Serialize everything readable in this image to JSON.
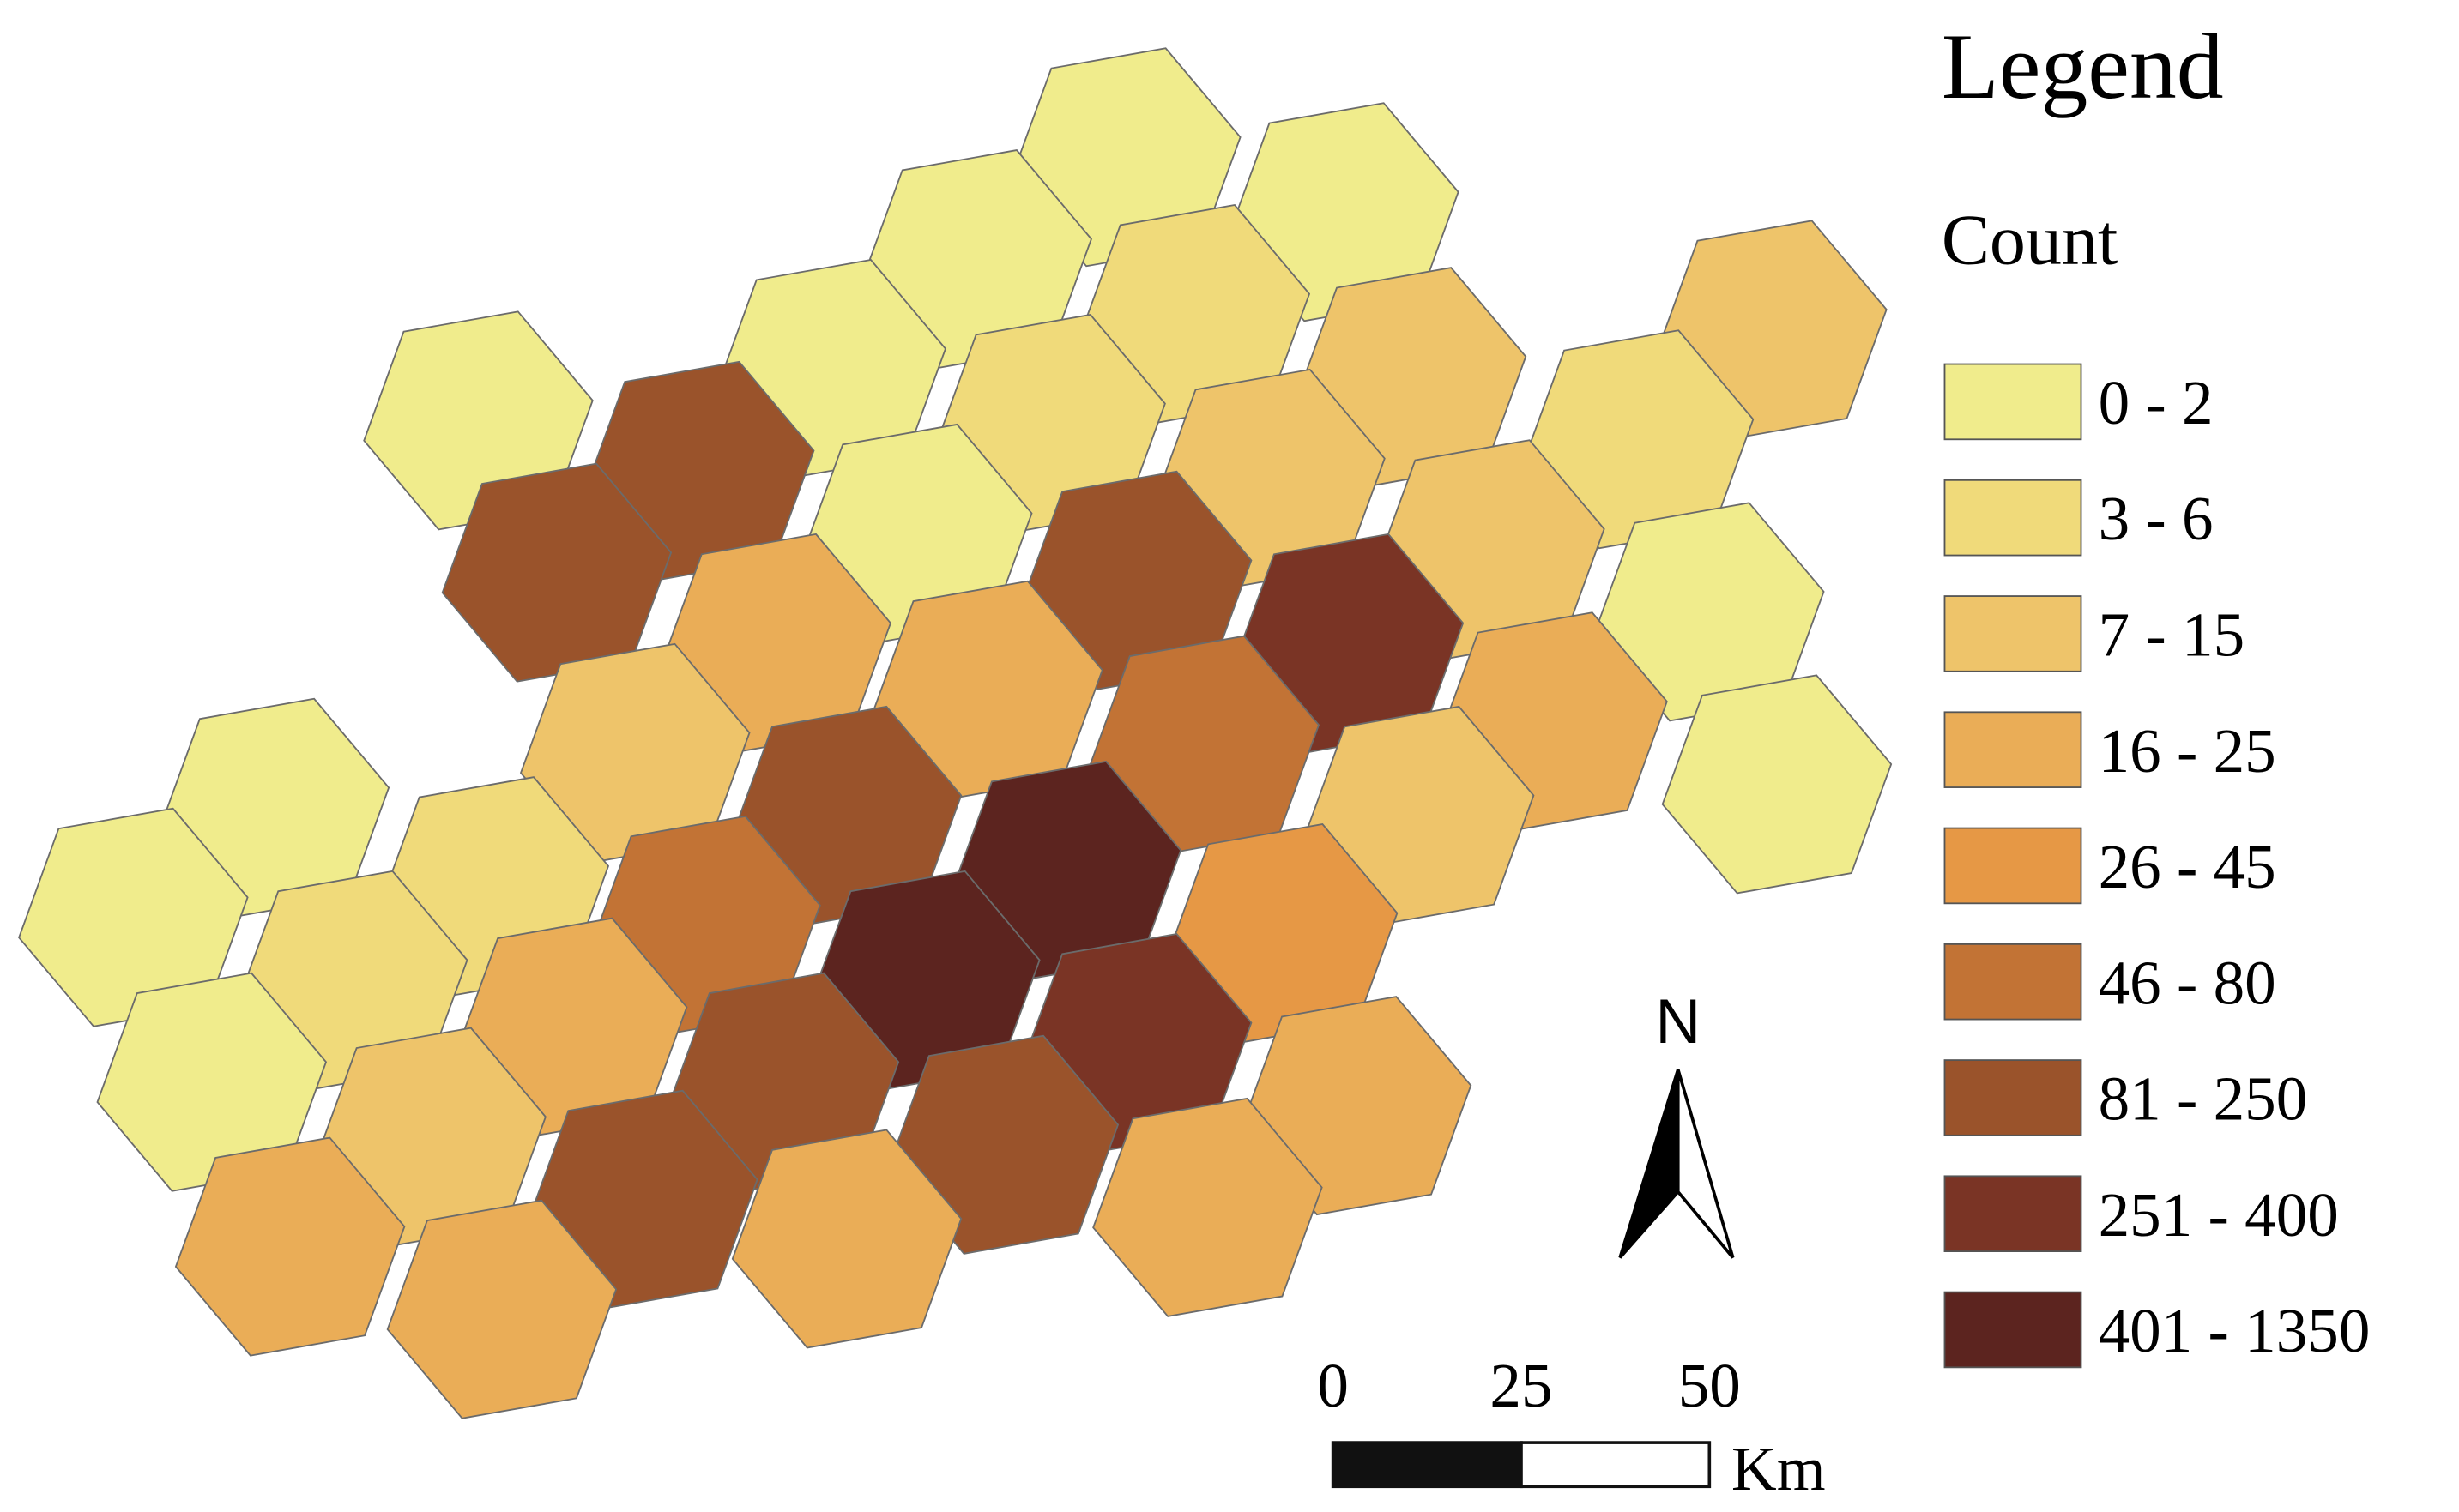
{
  "legend": {
    "title": "Legend",
    "subtitle": "Count",
    "items": [
      {
        "label": "0 - 2",
        "color": "#f0ec8c"
      },
      {
        "label": "3 - 6",
        "color": "#f0da7a"
      },
      {
        "label": "7 - 15",
        "color": "#eec46a"
      },
      {
        "label": "16 - 25",
        "color": "#eaad57"
      },
      {
        "label": "26 - 45",
        "color": "#e69845"
      },
      {
        "label": "46 - 80",
        "color": "#c27335"
      },
      {
        "label": "81 - 250",
        "color": "#9a532b"
      },
      {
        "label": "251 - 400",
        "color": "#7a3425"
      },
      {
        "label": "401 - 1350",
        "color": "#5c241f"
      }
    ]
  },
  "cells": [
    0,
    0,
    0,
    1,
    0,
    2,
    2,
    0,
    6,
    1,
    0,
    2,
    1,
    2,
    6,
    6,
    7,
    0,
    3,
    3,
    3,
    2,
    5,
    0,
    6,
    0,
    2,
    8,
    1,
    0,
    5,
    4,
    1,
    8,
    7,
    3,
    0,
    6,
    3,
    2,
    6,
    6,
    3,
    3,
    3,
    3
  ],
  "north": "N",
  "scale_bar": {
    "ticks": [
      0,
      25,
      50
    ],
    "unit": "Km"
  }
}
